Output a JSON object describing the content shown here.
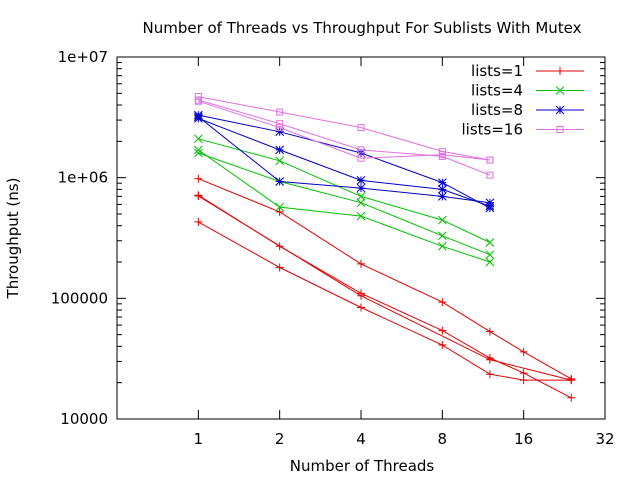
{
  "chart_data": {
    "type": "line",
    "title": "Number of Threads vs Throughput For Sublists With Mutex",
    "xlabel": "Number of Threads",
    "ylabel": "Throughput (ns)",
    "x_scale": "log2",
    "y_scale": "log10",
    "xlim": [
      0.5,
      32
    ],
    "ylim": [
      10000,
      10000000
    ],
    "x_ticks": [
      1,
      2,
      4,
      8,
      16,
      32
    ],
    "x_tick_labels": [
      "1",
      "2",
      "4",
      "8",
      "16",
      "32"
    ],
    "y_ticks": [
      10000,
      100000,
      1000000,
      10000000
    ],
    "y_tick_labels": [
      "10000",
      "100000",
      "1e+06",
      "1e+07"
    ],
    "legend_position": "top-right",
    "series": [
      {
        "name": "lists=1",
        "color": "#e00000",
        "marker": "plus",
        "runs": [
          {
            "x": [
              1,
              2,
              4,
              8,
              12,
              16,
              24
            ],
            "y": [
              980000,
              520000,
              193000,
              93000,
              53000,
              36000,
              21500
            ]
          },
          {
            "x": [
              1,
              2,
              4,
              8,
              12,
              16,
              24
            ],
            "y": [
              715000,
              270000,
              110000,
              54000,
              32000,
              24000,
              15000
            ]
          },
          {
            "x": [
              1,
              2,
              4,
              8,
              12,
              16,
              24
            ],
            "y": [
              430000,
              180000,
              84000,
              41000,
              23500,
              21000,
              21000
            ]
          },
          {
            "x": [
              1,
              4,
              12,
              24
            ],
            "y": [
              705000,
              105000,
              31000,
              21000
            ]
          }
        ]
      },
      {
        "name": "lists=4",
        "color": "#00c000",
        "marker": "cross",
        "runs": [
          {
            "x": [
              1,
              2,
              4,
              8,
              12
            ],
            "y": [
              2100000,
              1380000,
              700000,
              445000,
              290000
            ]
          },
          {
            "x": [
              1,
              2,
              4,
              8,
              12
            ],
            "y": [
              1700000,
              570000,
              480000,
              270000,
              200000
            ]
          },
          {
            "x": [
              1,
              2,
              4,
              8,
              12
            ],
            "y": [
              1600000,
              930000,
              620000,
              330000,
              230000
            ]
          }
        ]
      },
      {
        "name": "lists=8",
        "color": "#0000c8",
        "marker": "star",
        "runs": [
          {
            "x": [
              1,
              2,
              4,
              8,
              12
            ],
            "y": [
              3300000,
              2400000,
              1600000,
              910000,
              560000
            ]
          },
          {
            "x": [
              1,
              2,
              4,
              8,
              12
            ],
            "y": [
              3200000,
              930000,
              820000,
              700000,
              620000
            ]
          },
          {
            "x": [
              1,
              2,
              4,
              8,
              12
            ],
            "y": [
              3100000,
              1700000,
              950000,
              800000,
              580000
            ]
          }
        ]
      },
      {
        "name": "lists=16",
        "color": "#e070e0",
        "marker": "box",
        "runs": [
          {
            "x": [
              1,
              2,
              4,
              8,
              12
            ],
            "y": [
              4700000,
              3500000,
              2600000,
              1650000,
              1400000
            ]
          },
          {
            "x": [
              1,
              2,
              4,
              8,
              12
            ],
            "y": [
              4400000,
              2800000,
              1700000,
              1500000,
              1050000
            ]
          },
          {
            "x": [
              1,
              2,
              4,
              8,
              12
            ],
            "y": [
              4300000,
              2600000,
              1450000,
              1550000,
              1400000
            ]
          }
        ]
      }
    ]
  }
}
